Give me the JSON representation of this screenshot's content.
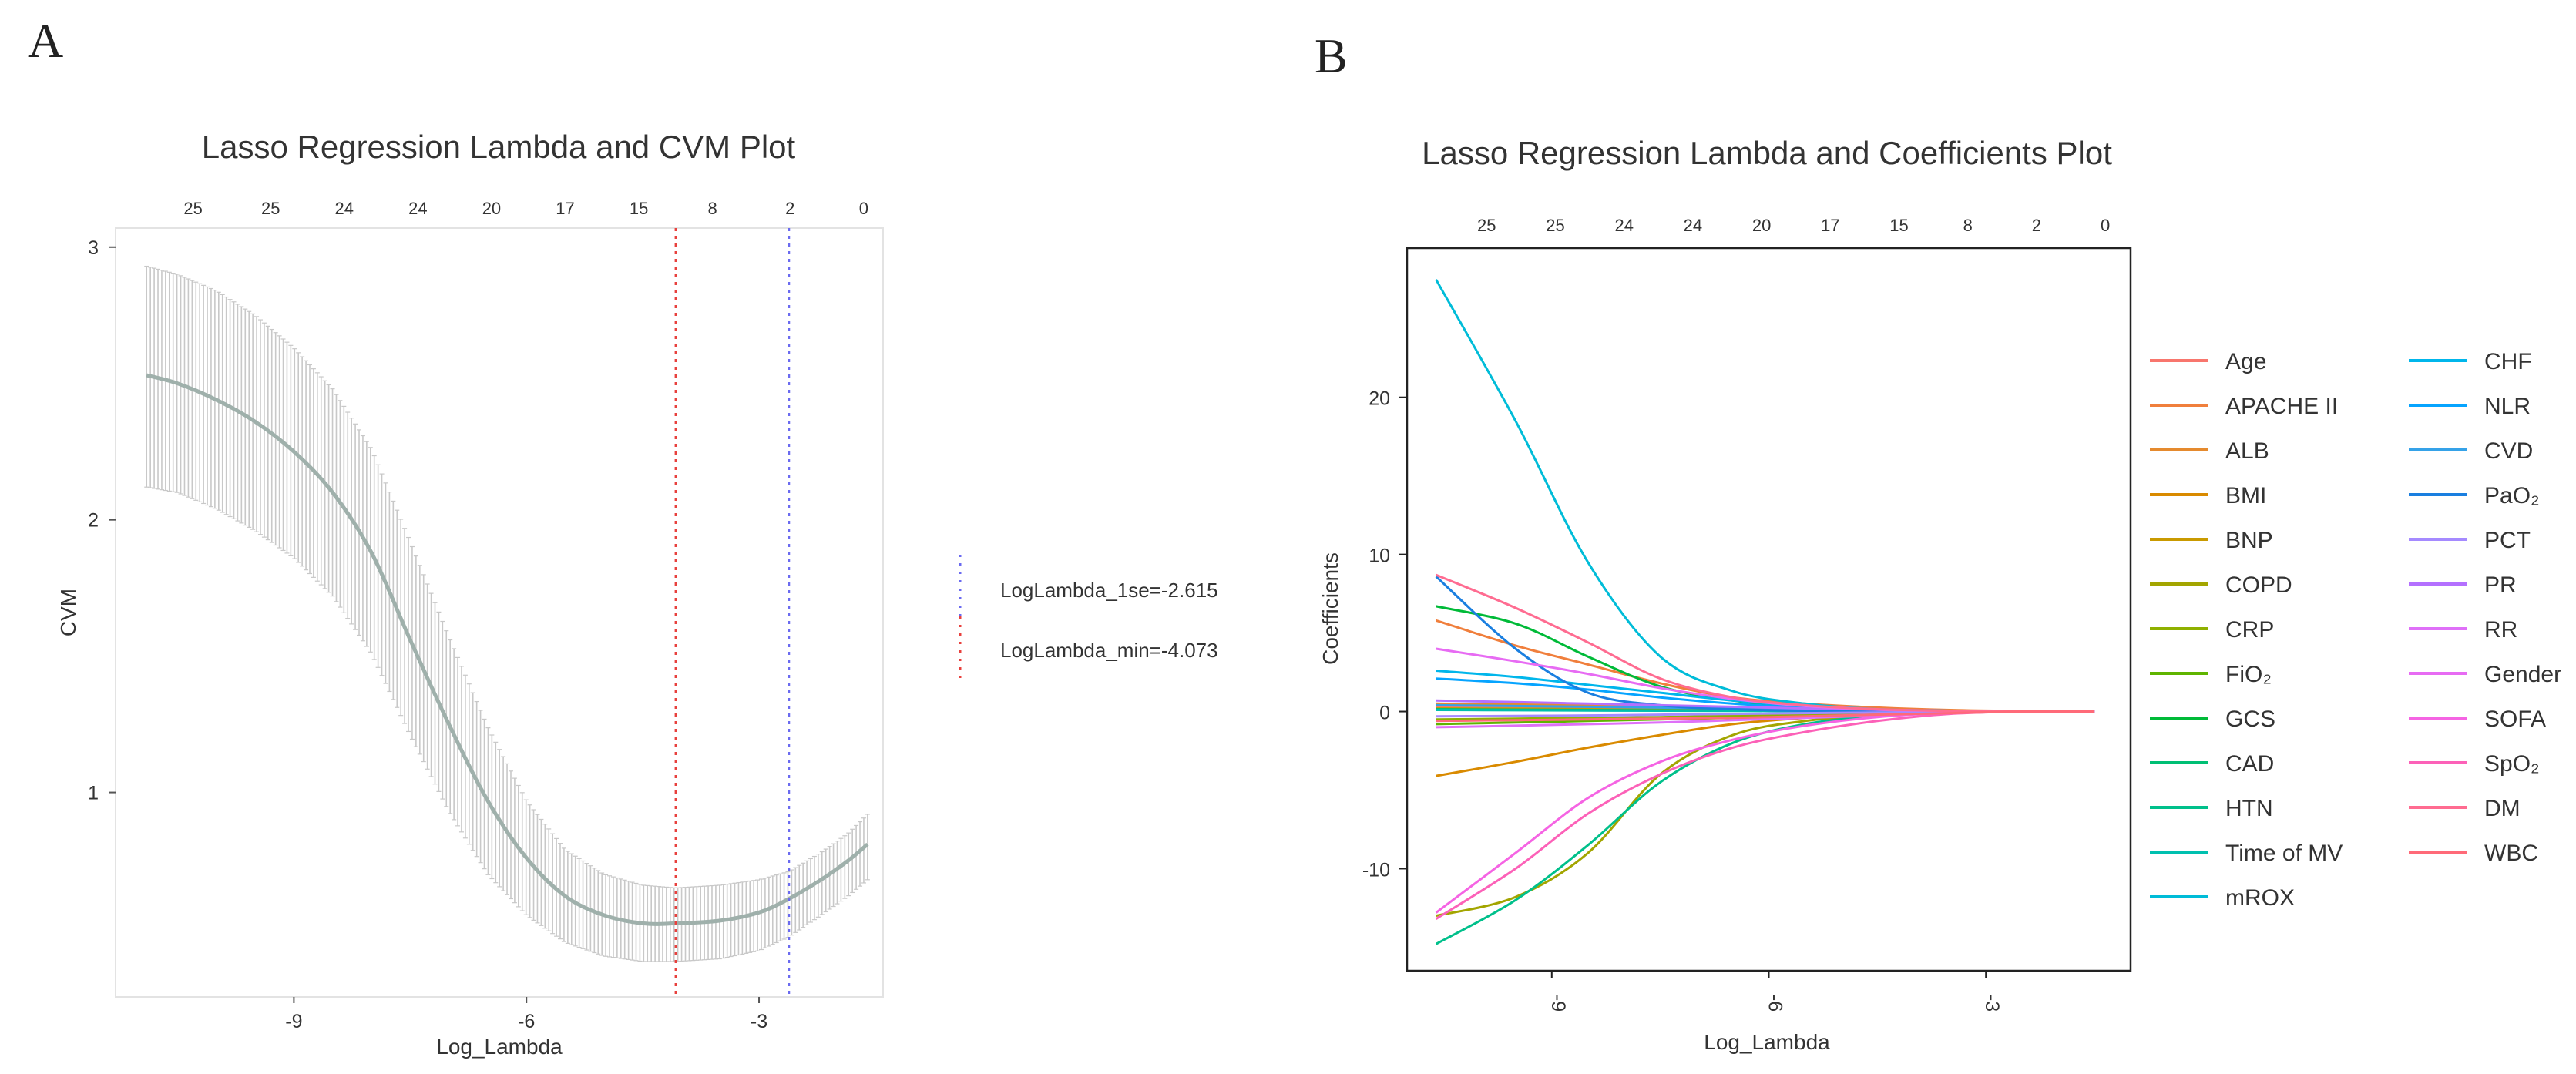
{
  "panels": {
    "a_letter": "A",
    "b_letter": "B"
  },
  "chart_data": [
    {
      "type": "line",
      "title": "Lasso Regression Lambda and CVM Plot",
      "xlabel": "Log_Lambda",
      "ylabel": "CVM",
      "xlim": [
        -11.3,
        -1.4
      ],
      "ylim": [
        0.25,
        3.07
      ],
      "x_ticks": [
        -9,
        -6,
        -3
      ],
      "y_ticks": [
        1,
        2,
        3
      ],
      "top_ticks": {
        "x": [
          -10.3,
          -9.3,
          -8.35,
          -7.4,
          -6.45,
          -5.5,
          -4.55,
          -3.6,
          -2.6,
          -1.65
        ],
        "labels": [
          "25",
          "25",
          "24",
          "24",
          "20",
          "17",
          "15",
          "8",
          "2",
          "0"
        ]
      },
      "curve": {
        "x": [
          -10.9,
          -10.5,
          -10.0,
          -9.5,
          -9.0,
          -8.5,
          -8.0,
          -7.5,
          -7.0,
          -6.5,
          -6.0,
          -5.5,
          -5.0,
          -4.5,
          -4.073,
          -3.5,
          -3.0,
          -2.615,
          -2.2,
          -1.85,
          -1.6
        ],
        "y": [
          2.53,
          2.5,
          2.44,
          2.36,
          2.25,
          2.1,
          1.88,
          1.56,
          1.25,
          0.97,
          0.76,
          0.62,
          0.55,
          0.52,
          0.52,
          0.53,
          0.56,
          0.61,
          0.68,
          0.75,
          0.81
        ]
      },
      "band": {
        "upper": [
          2.93,
          2.9,
          2.84,
          2.75,
          2.63,
          2.48,
          2.26,
          1.92,
          1.57,
          1.24,
          0.97,
          0.79,
          0.7,
          0.66,
          0.65,
          0.66,
          0.68,
          0.71,
          0.78,
          0.85,
          0.92
        ],
        "lower": [
          2.12,
          2.1,
          2.04,
          1.96,
          1.86,
          1.72,
          1.51,
          1.21,
          0.93,
          0.7,
          0.55,
          0.45,
          0.4,
          0.38,
          0.38,
          0.39,
          0.42,
          0.47,
          0.55,
          0.62,
          0.68
        ]
      },
      "vlines": [
        {
          "x": -4.073,
          "color": "#e8403d",
          "label": "LogLambda_min=-4.073"
        },
        {
          "x": -2.615,
          "color": "#6a6af0",
          "label": "LogLambda_1se=-2.615"
        }
      ],
      "legend_order": [
        "LogLambda_1se=-2.615",
        "LogLambda_min=-4.073"
      ],
      "colors": {
        "line": "#9fb0ab",
        "band": "#c8c8c8"
      }
    },
    {
      "type": "line",
      "title": "Lasso Regression Lambda and Coefficients Plot",
      "xlabel": "Log_Lambda",
      "ylabel": "Coefficients",
      "xlim": [
        -11.0,
        -1.0
      ],
      "ylim": [
        -16.5,
        29.5
      ],
      "x_ticks": [
        -9,
        -6,
        -3
      ],
      "x_tick_labels": [
        "-9",
        "-6",
        "-3"
      ],
      "y_ticks": [
        -10,
        0,
        10,
        20
      ],
      "top_ticks": {
        "x": [
          -9.9,
          -8.95,
          -8.0,
          -7.05,
          -6.1,
          -5.15,
          -4.2,
          -3.25,
          -2.3,
          -1.35
        ],
        "labels": [
          "25",
          "25",
          "24",
          "24",
          "20",
          "17",
          "15",
          "8",
          "2",
          "0"
        ]
      },
      "x": [
        -10.6,
        -9.5,
        -8.5,
        -7.5,
        -6.5,
        -5.5,
        -4.5,
        -3.5,
        -2.5,
        -1.5
      ],
      "series": [
        {
          "name": "Age",
          "color": "#f8766d",
          "values": [
            0.3,
            0.28,
            0.25,
            0.22,
            0.18,
            0.14,
            0.1,
            0.06,
            0.03,
            0
          ]
        },
        {
          "name": "APACHE II",
          "color": "#f07f3c",
          "values": [
            5.8,
            4.2,
            3.0,
            1.8,
            0.9,
            0.5,
            0.25,
            0.1,
            0.03,
            0
          ]
        },
        {
          "name": "ALB",
          "color": "#e58a2e",
          "values": [
            0.5,
            0.45,
            0.4,
            0.32,
            0.25,
            0.18,
            0.12,
            0.06,
            0.02,
            0
          ]
        },
        {
          "name": "BMI",
          "color": "#d98a00",
          "values": [
            -4.1,
            -3.2,
            -2.3,
            -1.5,
            -0.8,
            -0.4,
            -0.15,
            -0.05,
            0,
            0
          ]
        },
        {
          "name": "BNP",
          "color": "#c99a00",
          "values": [
            0.2,
            0.18,
            0.15,
            0.12,
            0.1,
            0.07,
            0.05,
            0.02,
            0,
            0
          ]
        },
        {
          "name": "COPD",
          "color": "#a3a500",
          "values": [
            -13.0,
            -11.8,
            -9.0,
            -4.0,
            -1.5,
            -0.6,
            -0.25,
            -0.08,
            0,
            0
          ]
        },
        {
          "name": "CRP",
          "color": "#8fb000",
          "values": [
            -0.5,
            -0.45,
            -0.4,
            -0.35,
            -0.28,
            -0.2,
            -0.12,
            -0.05,
            0,
            0
          ]
        },
        {
          "name": "FiO₂",
          "color": "#5fb400",
          "values": [
            -0.8,
            -0.7,
            -0.6,
            -0.5,
            -0.4,
            -0.3,
            -0.2,
            -0.1,
            0,
            0
          ]
        },
        {
          "name": "GCS",
          "color": "#00ba38",
          "values": [
            6.7,
            5.6,
            3.5,
            1.6,
            0.7,
            0.3,
            0.1,
            0.03,
            0,
            0
          ]
        },
        {
          "name": "CAD",
          "color": "#00bf74",
          "values": [
            0.15,
            0.12,
            0.1,
            0.08,
            0.06,
            0.04,
            0.02,
            0.01,
            0,
            0
          ]
        },
        {
          "name": "HTN",
          "color": "#00c08b",
          "values": [
            -14.8,
            -12.0,
            -8.5,
            -4.5,
            -2.0,
            -0.8,
            -0.3,
            -0.08,
            0,
            0
          ]
        },
        {
          "name": "Time of MV",
          "color": "#00c0af",
          "values": [
            0.1,
            0.08,
            0.06,
            0.05,
            0.04,
            0.03,
            0.02,
            0.01,
            0,
            0
          ]
        },
        {
          "name": "mROX",
          "color": "#00bcd8",
          "values": [
            27.5,
            18.5,
            9.5,
            3.5,
            1.3,
            0.5,
            0.15,
            0.05,
            0,
            0
          ]
        },
        {
          "name": "CHF",
          "color": "#00b6eb",
          "values": [
            2.6,
            2.2,
            1.7,
            1.2,
            0.7,
            0.35,
            0.12,
            0.04,
            0,
            0
          ]
        },
        {
          "name": "NLR",
          "color": "#06a4ff",
          "values": [
            2.1,
            1.8,
            1.4,
            0.9,
            0.5,
            0.25,
            0.08,
            0.02,
            0,
            0
          ]
        },
        {
          "name": "CVD",
          "color": "#35a2e8",
          "values": [
            0.4,
            0.35,
            0.3,
            0.25,
            0.2,
            0.15,
            0.1,
            0.05,
            0,
            0
          ]
        },
        {
          "name": "PaO₂",
          "color": "#1a7fe0",
          "values": [
            8.6,
            4.0,
            1.2,
            0.4,
            0.15,
            0.05,
            0.02,
            0,
            0,
            0
          ]
        },
        {
          "name": "PCT",
          "color": "#a58aff",
          "values": [
            -0.3,
            -0.28,
            -0.25,
            -0.2,
            -0.15,
            -0.1,
            -0.06,
            -0.03,
            0,
            0
          ]
        },
        {
          "name": "PR",
          "color": "#b470ff",
          "values": [
            0.7,
            0.6,
            0.5,
            0.4,
            0.3,
            0.2,
            0.12,
            0.05,
            0,
            0
          ]
        },
        {
          "name": "RR",
          "color": "#df70f8",
          "values": [
            -1.0,
            -0.9,
            -0.8,
            -0.7,
            -0.55,
            -0.4,
            -0.25,
            -0.1,
            0,
            0
          ]
        },
        {
          "name": "Gender",
          "color": "#e76bf3",
          "values": [
            4.0,
            3.2,
            2.4,
            1.5,
            0.8,
            0.35,
            0.12,
            0.03,
            0,
            0
          ]
        },
        {
          "name": "SOFA",
          "color": "#f564e3",
          "values": [
            -12.8,
            -9.0,
            -5.5,
            -3.2,
            -1.8,
            -0.9,
            -0.35,
            -0.08,
            0,
            0
          ]
        },
        {
          "name": "SpO₂",
          "color": "#fc61b8",
          "values": [
            -13.2,
            -10.0,
            -6.5,
            -4.0,
            -2.3,
            -1.3,
            -0.6,
            -0.15,
            0,
            0
          ]
        },
        {
          "name": "DM",
          "color": "#ff6c91",
          "values": [
            8.7,
            6.6,
            4.4,
            2.1,
            0.9,
            0.4,
            0.15,
            0.04,
            0,
            0
          ]
        },
        {
          "name": "WBC",
          "color": "#ff6a78",
          "values": [
            -0.6,
            -0.55,
            -0.5,
            -0.45,
            -0.4,
            -0.3,
            -0.2,
            -0.1,
            0,
            0
          ]
        }
      ]
    }
  ]
}
